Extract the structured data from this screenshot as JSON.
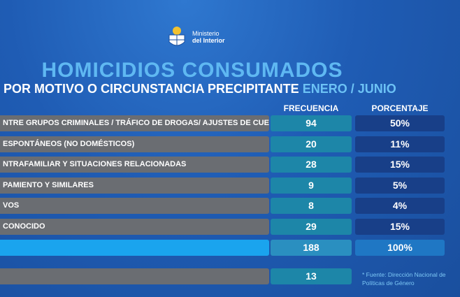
{
  "header": {
    "logo_line1": "Ministerio",
    "logo_line2": "del Interior",
    "title": "HOMICIDIOS CONSUMADOS",
    "subtitle": "POR MOTIVO O CIRCUNSTANCIA PRECIPITANTE",
    "period": "ENERO / JUNIO"
  },
  "table": {
    "columns": [
      "FRECUENCIA",
      "PORCENTAJE"
    ],
    "rows": [
      {
        "label": "NTRE GRUPOS CRIMINALES / TRÁFICO DE DROGAS/ AJUSTES DE CUENTAS",
        "frequency": 94,
        "percentage": "50%"
      },
      {
        "label": "ESPONTÁNEOS (NO DOMÉSTICOS)",
        "frequency": 20,
        "percentage": "11%"
      },
      {
        "label": "NTRAFAMILIAR Y SITUACIONES RELACIONADAS",
        "frequency": 28,
        "percentage": "15%"
      },
      {
        "label": "PAMIENTO Y SIMILARES",
        "frequency": 9,
        "percentage": "5%"
      },
      {
        "label": "VOS",
        "frequency": 8,
        "percentage": "4%"
      },
      {
        "label": "CONOCIDO",
        "frequency": 29,
        "percentage": "15%"
      }
    ],
    "total": {
      "frequency": 188,
      "percentage": "100%"
    },
    "extra": {
      "frequency": 13
    }
  },
  "footnote": [
    "* Fuente: Dirección Nacional de",
    "Políticas de Género"
  ]
}
